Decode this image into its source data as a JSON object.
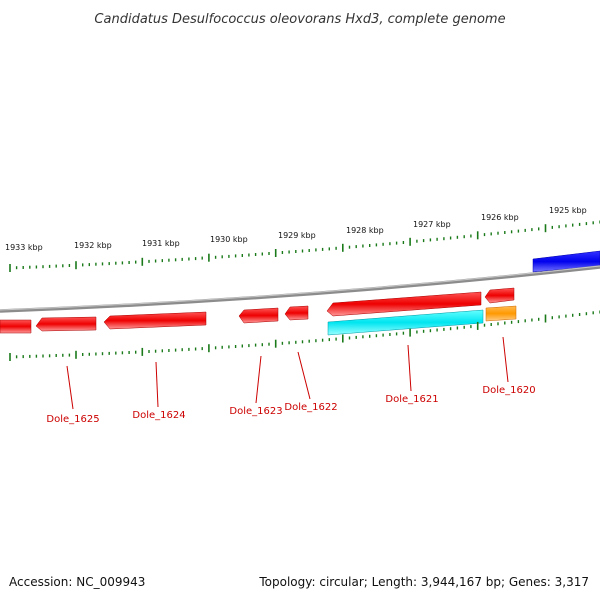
{
  "title": "Candidatus Desulfococcus oleovorans Hxd3, complete genome",
  "footer": {
    "accession": "Accession: NC_009943",
    "summary": "Topology: circular; Length: 3,944,167 bp; Genes: 3,317"
  },
  "colors": {
    "genome_line": "#8c8c8c",
    "tick": "#1a7a1a",
    "label_line": "#cc0000",
    "label_text": "#cc0000",
    "feature_red": "#ff0000",
    "feature_cyan": "#00e5f0",
    "feature_orange": "#ff9900",
    "feature_blue": "#0000ee"
  },
  "kbp_ticks": [
    {
      "label": "1933 kbp"
    },
    {
      "label": "1932 kbp"
    },
    {
      "label": "1931 kbp"
    },
    {
      "label": "1930 kbp"
    },
    {
      "label": "1929 kbp"
    },
    {
      "label": "1928 kbp"
    },
    {
      "label": "1927 kbp"
    },
    {
      "label": "1926 kbp"
    },
    {
      "label": "1925 kbp"
    }
  ],
  "gene_labels": [
    {
      "name": "Dole_1625"
    },
    {
      "name": "Dole_1624"
    },
    {
      "name": "Dole_1623"
    },
    {
      "name": "Dole_1622"
    },
    {
      "name": "Dole_1621"
    },
    {
      "name": "Dole_1620"
    }
  ]
}
